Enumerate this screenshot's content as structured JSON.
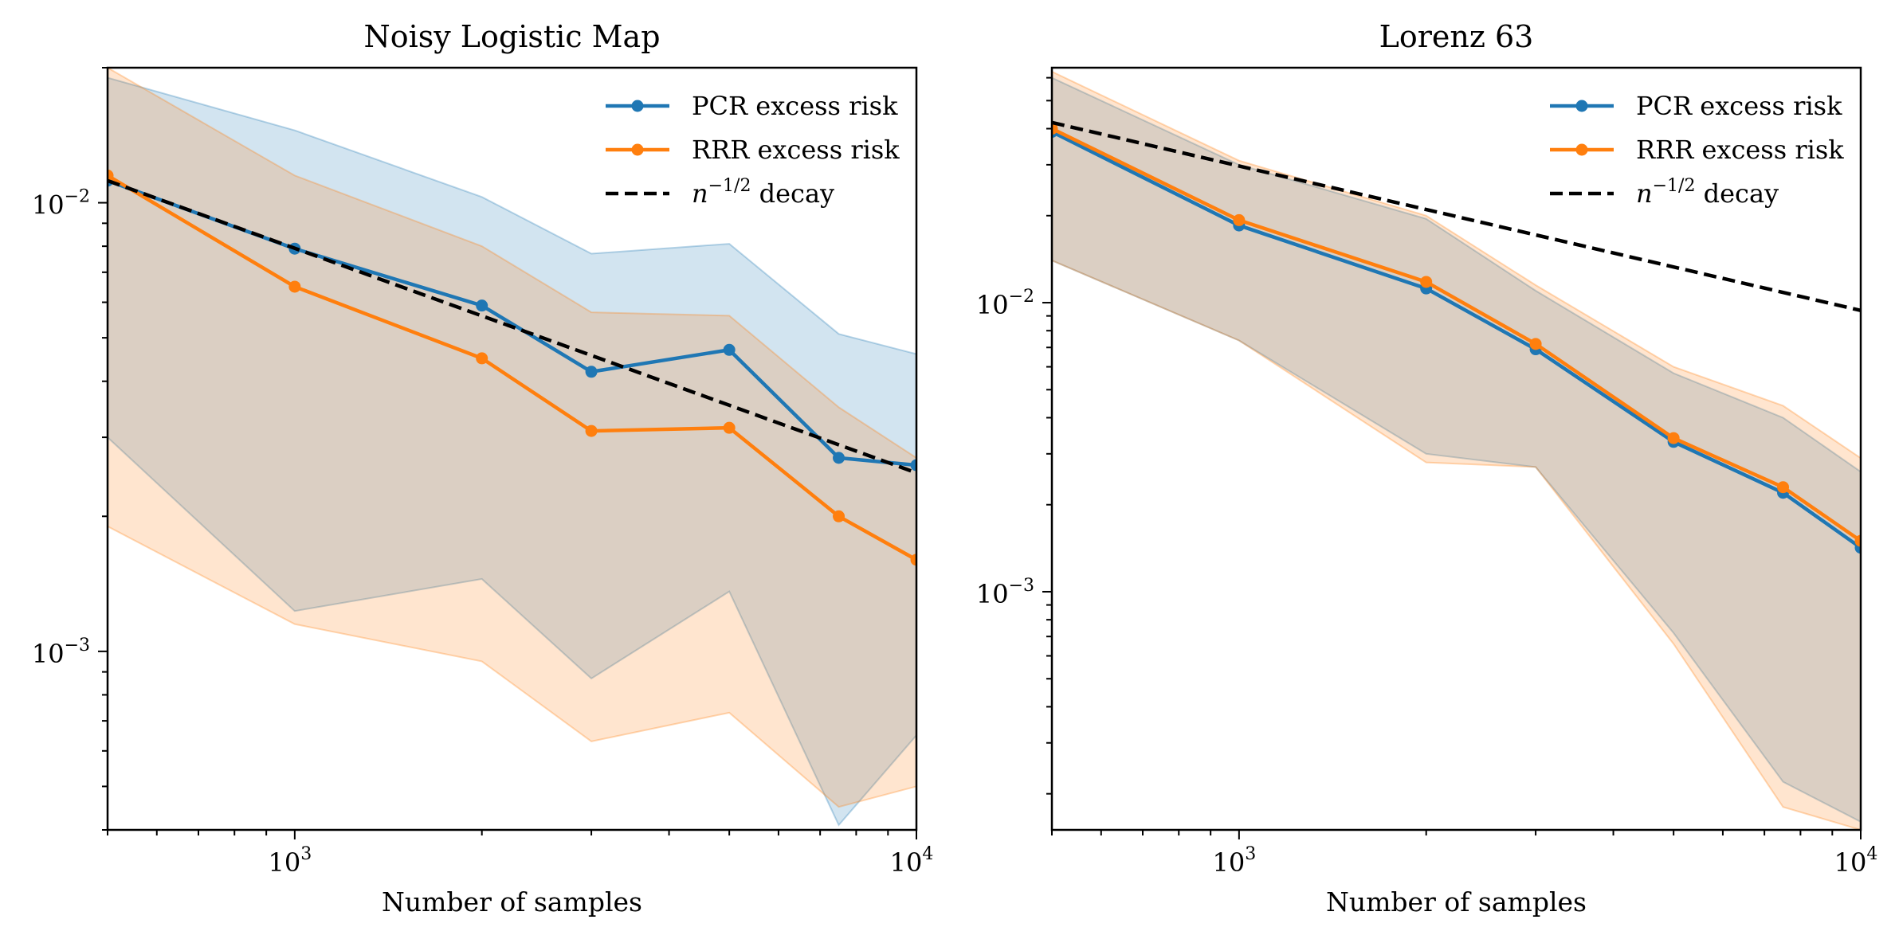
{
  "figure": {
    "panels": [
      "left",
      "right"
    ]
  },
  "chart_data": [
    {
      "type": "line",
      "title": "Noisy Logistic Map",
      "xlabel": "Number of samples",
      "ylabel": "",
      "xscale": "log",
      "yscale": "log",
      "xlim": [
        500,
        10000
      ],
      "ylim": [
        0.0004,
        0.02
      ],
      "xticks": [
        {
          "value": 1000,
          "base": "10",
          "exp": "3"
        },
        {
          "value": 10000,
          "base": "10",
          "exp": "4"
        }
      ],
      "yticks": [
        {
          "value": 0.001,
          "base": "10",
          "exp": "−3"
        },
        {
          "value": 0.01,
          "base": "10",
          "exp": "−2"
        }
      ],
      "grid": false,
      "legend_position": "top-right",
      "x": [
        500,
        1000,
        2000,
        3000,
        5000,
        7500,
        10000
      ],
      "series": [
        {
          "name": "PCR excess risk",
          "color": "#1f77b4",
          "values": [
            0.0112,
            0.0079,
            0.0059,
            0.0042,
            0.0047,
            0.0027,
            0.0026
          ],
          "band_upper": [
            0.019,
            0.0145,
            0.0103,
            0.0077,
            0.0081,
            0.0051,
            0.0046
          ],
          "band_lower": [
            0.003,
            0.00123,
            0.00145,
            0.00087,
            0.00136,
            0.00041,
            0.00065
          ]
        },
        {
          "name": "RRR excess risk",
          "color": "#ff7f0e",
          "values": [
            0.0115,
            0.0065,
            0.0045,
            0.0031,
            0.00315,
            0.002,
            0.0016
          ],
          "band_upper": [
            0.02,
            0.0115,
            0.008,
            0.0057,
            0.0056,
            0.0035,
            0.0027
          ],
          "band_lower": [
            0.0019,
            0.00115,
            0.00095,
            0.00063,
            0.00073,
            0.00045,
            0.0005
          ]
        }
      ],
      "reference_line": {
        "name": "n−1/2 decay",
        "label_base": "n",
        "label_exp": "−1/2",
        "label_tail": " decay",
        "style": "dashed",
        "color": "#000000",
        "x": [
          500,
          10000
        ],
        "values": [
          0.0112,
          0.0025
        ]
      }
    },
    {
      "type": "line",
      "title": "Lorenz 63",
      "xlabel": "Number of samples",
      "ylabel": "",
      "xscale": "log",
      "yscale": "log",
      "xlim": [
        500,
        10000
      ],
      "ylim": [
        0.00015,
        0.065
      ],
      "xticks": [
        {
          "value": 1000,
          "base": "10",
          "exp": "3"
        },
        {
          "value": 10000,
          "base": "10",
          "exp": "4"
        }
      ],
      "yticks": [
        {
          "value": 0.001,
          "base": "10",
          "exp": "−3"
        },
        {
          "value": 0.01,
          "base": "10",
          "exp": "−2"
        }
      ],
      "grid": false,
      "legend_position": "top-right",
      "x": [
        500,
        1000,
        2000,
        3000,
        5000,
        7500,
        10000
      ],
      "series": [
        {
          "name": "PCR excess risk",
          "color": "#1f77b4",
          "values": [
            0.039,
            0.0185,
            0.0112,
            0.0069,
            0.0033,
            0.0022,
            0.00142
          ],
          "band_upper": [
            0.06,
            0.03,
            0.0195,
            0.011,
            0.0057,
            0.004,
            0.0026
          ],
          "band_lower": [
            0.014,
            0.0074,
            0.003,
            0.0027,
            0.00072,
            0.00022,
            0.00016
          ]
        },
        {
          "name": "RRR excess risk",
          "color": "#ff7f0e",
          "values": [
            0.04,
            0.0193,
            0.0118,
            0.0072,
            0.0034,
            0.0023,
            0.0015
          ],
          "band_upper": [
            0.063,
            0.031,
            0.02,
            0.0115,
            0.006,
            0.0044,
            0.0029
          ],
          "band_lower": [
            0.014,
            0.0074,
            0.0028,
            0.0027,
            0.00066,
            0.00018,
            0.00015
          ]
        }
      ],
      "reference_line": {
        "name": "n−1/2 decay",
        "label_base": "n",
        "label_exp": "−1/2",
        "label_tail": " decay",
        "style": "dashed",
        "color": "#000000",
        "x": [
          500,
          10000
        ],
        "values": [
          0.042,
          0.0094
        ]
      }
    }
  ]
}
